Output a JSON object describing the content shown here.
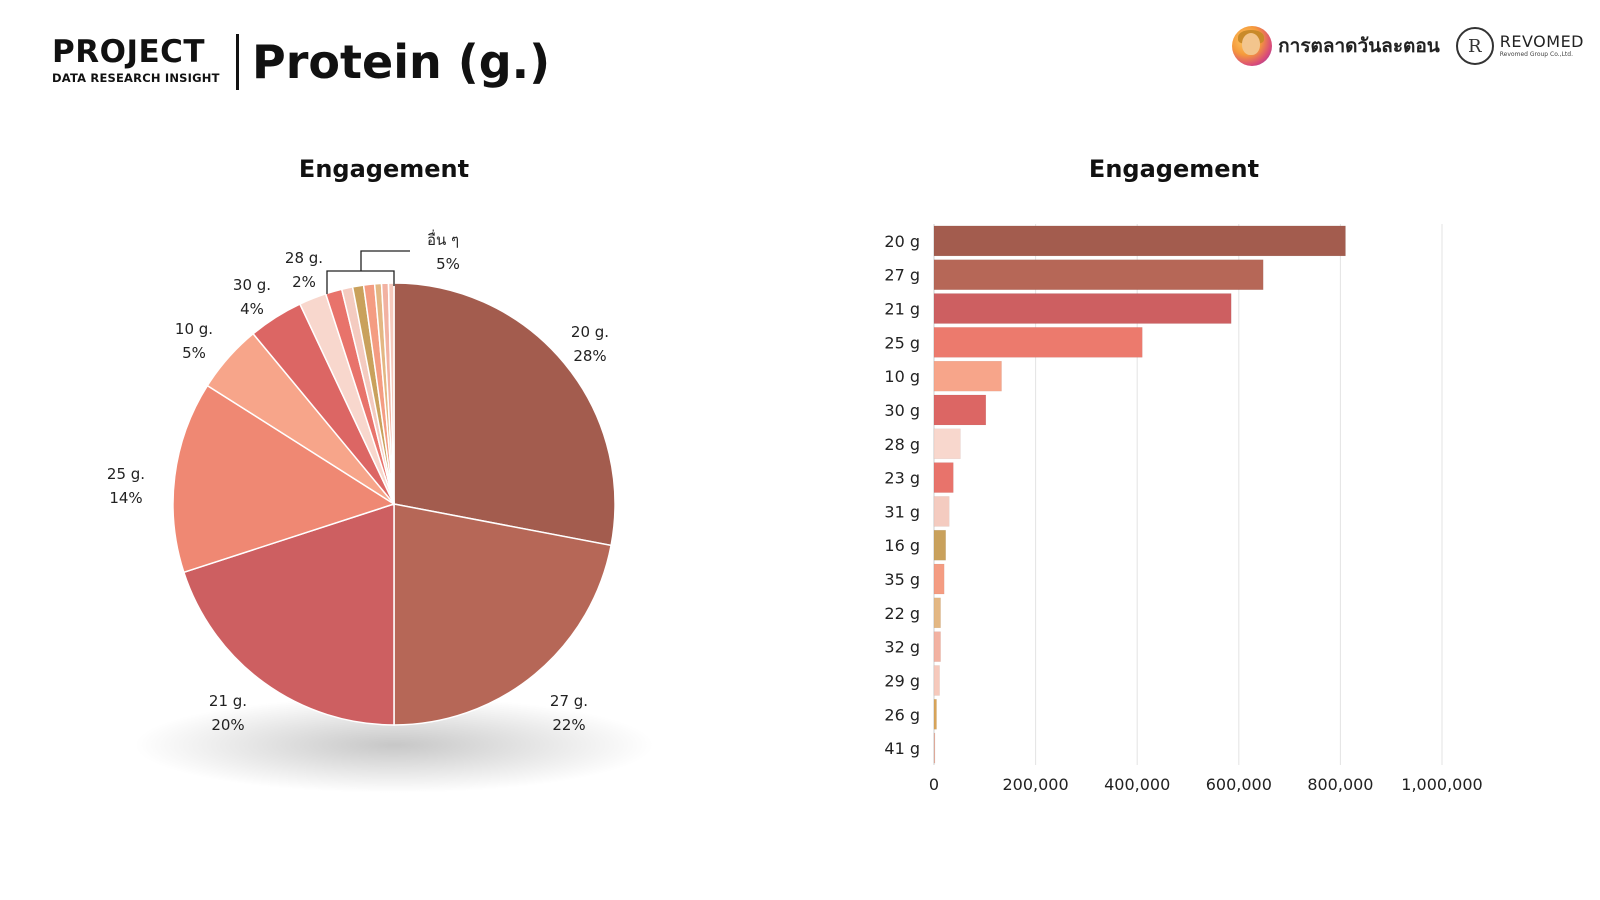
{
  "header": {
    "brand_title": "PROJECT",
    "brand_subtitle": "DATA RESEARCH INSIGHT",
    "page_title": "Protein (g.)"
  },
  "logos": {
    "logo1_text": "การตลาดวันละตอน",
    "logo2_mark": "R",
    "logo2_name": "REVOMED",
    "logo2_sub": "Revomed Group Co.,Ltd."
  },
  "chart_data": [
    {
      "type": "pie",
      "title": "Engagement",
      "slices": [
        {
          "name": "20 g.",
          "percent": 28,
          "label_percent": "28%",
          "color": "#a35c4e"
        },
        {
          "name": "27 g.",
          "percent": 22,
          "label_percent": "22%",
          "color": "#b66757"
        },
        {
          "name": "21 g.",
          "percent": 20,
          "label_percent": "20%",
          "color": "#cd5f61"
        },
        {
          "name": "25 g.",
          "percent": 14,
          "label_percent": "14%",
          "color": "#ef8873"
        },
        {
          "name": "10 g.",
          "percent": 5,
          "label_percent": "5%",
          "color": "#f7a58a"
        },
        {
          "name": "30 g.",
          "percent": 4,
          "label_percent": "4%",
          "color": "#dc6664"
        },
        {
          "name": "28 g.",
          "percent": 2,
          "label_percent": "2%",
          "color": "#f8d7cd"
        },
        {
          "name": "23 g.",
          "percent": 1.2,
          "color": "#e8736b"
        },
        {
          "name": "31 g.",
          "percent": 0.8,
          "color": "#f4cbc0"
        },
        {
          "name": "16 g.",
          "percent": 0.8,
          "color": "#c9a15c"
        },
        {
          "name": "35 g.",
          "percent": 0.8,
          "color": "#f49c82"
        },
        {
          "name": "22 g.",
          "percent": 0.5,
          "color": "#e3b783"
        },
        {
          "name": "32 g.",
          "percent": 0.5,
          "color": "#f2b2a2"
        },
        {
          "name": "29 g.",
          "percent": 0.4,
          "color": "#f6c9bc"
        }
      ],
      "others_label": "อื่น ๆ",
      "others_percent": "5%"
    },
    {
      "type": "bar",
      "orientation": "horizontal",
      "title": "Engagement",
      "categories": [
        "20 g",
        "27 g",
        "21 g",
        "25 g",
        "10 g",
        "30 g",
        "28 g",
        "23 g",
        "31 g",
        "16 g",
        "35 g",
        "22 g",
        "32 g",
        "29 g",
        "26 g",
        "41 g"
      ],
      "values": [
        810000,
        648000,
        585000,
        410000,
        133000,
        102000,
        52000,
        38000,
        30000,
        23000,
        20000,
        13000,
        13000,
        11000,
        5000,
        1000
      ],
      "colors": [
        "#a35c4e",
        "#b66757",
        "#cd5f61",
        "#ec7a6d",
        "#f7a58a",
        "#dc6664",
        "#f8d7cd",
        "#e8736b",
        "#f4cbc0",
        "#c9a15c",
        "#f49c82",
        "#e3b783",
        "#f2b2a2",
        "#f6c9bc",
        "#d9a55a",
        "#e8b0a0"
      ],
      "x_ticks": [
        "0",
        "200,000",
        "400,000",
        "600,000",
        "800,000",
        "1,000,000"
      ],
      "xlim": [
        0,
        1000000
      ],
      "grid": true
    }
  ]
}
